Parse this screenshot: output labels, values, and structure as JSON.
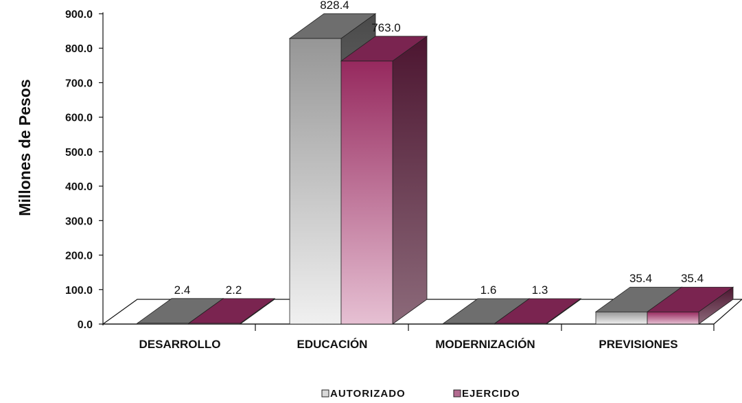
{
  "chart_data": {
    "type": "bar",
    "ylabel": "Millones de Pesos",
    "xlabel": "",
    "ylim": [
      0,
      900
    ],
    "y_ticks": [
      "0.0",
      "100.0",
      "200.0",
      "300.0",
      "400.0",
      "500.0",
      "600.0",
      "700.0",
      "800.0",
      "900.0"
    ],
    "categories": [
      "DESARROLLO",
      "EDUCACIÓN",
      "MODERNIZACIÓN",
      "PREVISIONES"
    ],
    "series": [
      {
        "name": "AUTORIZADO",
        "values": [
          2.4,
          828.4,
          1.6,
          35.4
        ],
        "labels": [
          "2.4",
          "828.4",
          "1.6",
          "35.4"
        ],
        "color": "#9a9a9a"
      },
      {
        "name": "EJERCIDO",
        "values": [
          2.2,
          763.0,
          1.3,
          35.4
        ],
        "labels": [
          "2.2",
          "763.0",
          "1.3",
          "35.4"
        ],
        "color": "#8c2a5a"
      }
    ],
    "legend_position": "bottom",
    "grid": false,
    "style": "3d-column"
  }
}
